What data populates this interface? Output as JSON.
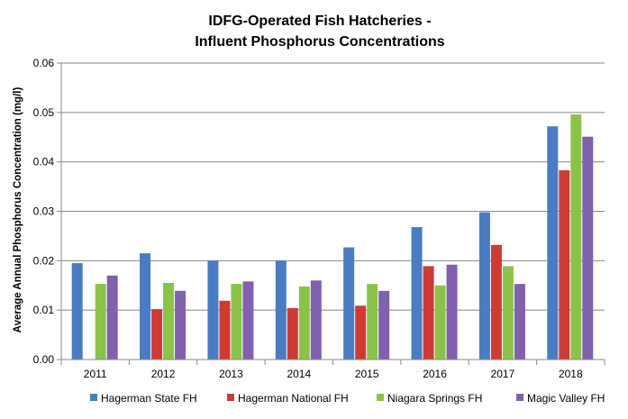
{
  "chart_data": {
    "type": "bar",
    "title": [
      "IDFG-Operated Fish Hatcheries -",
      "Influent Phosphorus Concentrations"
    ],
    "xlabel": "",
    "ylabel": "Average Annual Phosphorus Concentration (mg/l)",
    "categories": [
      "2011",
      "2012",
      "2013",
      "2014",
      "2015",
      "2016",
      "2017",
      "2018"
    ],
    "ylim": [
      0,
      0.06
    ],
    "yticks": [
      "0.00",
      "0.01",
      "0.02",
      "0.03",
      "0.04",
      "0.05",
      "0.06"
    ],
    "grid": true,
    "legend_position": "bottom",
    "series": [
      {
        "name": "Hagerman State FH",
        "color": "#4a7cc4",
        "values": [
          0.0195,
          0.0215,
          0.02,
          0.02,
          0.0227,
          0.0268,
          0.0298,
          0.0472
        ]
      },
      {
        "name": "Hagerman National FH",
        "color": "#cf3a35",
        "values": [
          null,
          0.0102,
          0.0119,
          0.0104,
          0.0109,
          0.0189,
          0.0232,
          0.0383
        ]
      },
      {
        "name": "Niagara Springs FH",
        "color": "#8bc34a",
        "values": [
          0.0153,
          0.0155,
          0.0153,
          0.0148,
          0.0153,
          0.015,
          0.0189,
          0.0496
        ]
      },
      {
        "name": "Magic Valley FH",
        "color": "#8061ae",
        "values": [
          0.017,
          0.0139,
          0.0158,
          0.016,
          0.0139,
          0.0192,
          0.0153,
          0.0451
        ]
      }
    ]
  }
}
